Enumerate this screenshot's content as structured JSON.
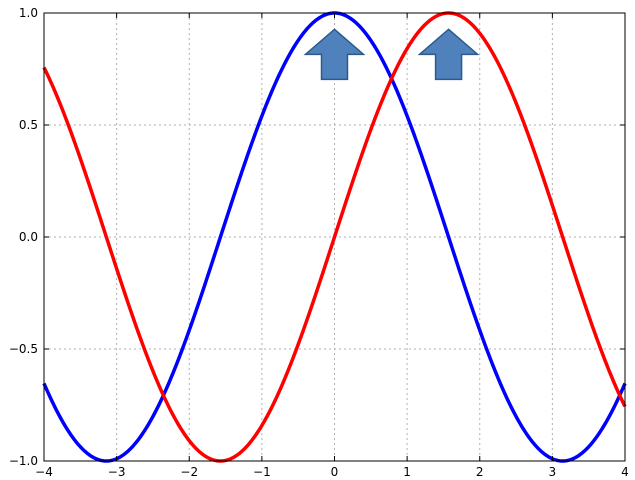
{
  "chart_data": {
    "type": "line",
    "title": "",
    "xlabel": "",
    "ylabel": "",
    "xlim": [
      -4,
      4
    ],
    "ylim": [
      -1.0,
      1.0
    ],
    "grid": true,
    "x_ticks": [
      -4,
      -3,
      -2,
      -1,
      0,
      1,
      2,
      3,
      4
    ],
    "x_tick_labels": [
      "−4",
      "−3",
      "−2",
      "−1",
      "0",
      "1",
      "2",
      "3",
      "4"
    ],
    "y_ticks": [
      -1.0,
      -0.5,
      0.0,
      0.5,
      1.0
    ],
    "y_tick_labels": [
      "−1.0",
      "−0.5",
      "0.0",
      "0.5",
      "1.0"
    ],
    "series": [
      {
        "function": "cos",
        "color": "#0000ff",
        "x": [
          -4,
          -3.5,
          -3,
          -2.5,
          -2,
          -1.5,
          -1,
          -0.5,
          0,
          0.5,
          1,
          1.5,
          2,
          2.5,
          3,
          3.5,
          4
        ],
        "values": [
          -0.654,
          -0.936,
          -0.99,
          -0.801,
          -0.416,
          0.071,
          0.54,
          0.878,
          1.0,
          0.878,
          0.54,
          0.071,
          -0.416,
          -0.801,
          -0.99,
          -0.936,
          -0.654
        ]
      },
      {
        "function": "sin",
        "color": "#ff0000",
        "x": [
          -4,
          -3.5,
          -3,
          -2.5,
          -2,
          -1.5,
          -1,
          -0.5,
          0,
          0.5,
          1,
          1.5,
          2,
          2.5,
          3,
          3.5,
          4
        ],
        "values": [
          0.757,
          0.351,
          -0.141,
          -0.598,
          -0.909,
          -0.997,
          -0.841,
          -0.479,
          0.0,
          0.479,
          0.841,
          0.997,
          0.909,
          0.598,
          0.141,
          -0.351,
          -0.757
        ]
      }
    ],
    "annotations": [
      {
        "type": "up-arrow",
        "x": 0.0,
        "y": 0.82,
        "color": "#4f81bd"
      },
      {
        "type": "up-arrow",
        "x": 1.5708,
        "y": 0.82,
        "color": "#4f81bd"
      }
    ]
  }
}
